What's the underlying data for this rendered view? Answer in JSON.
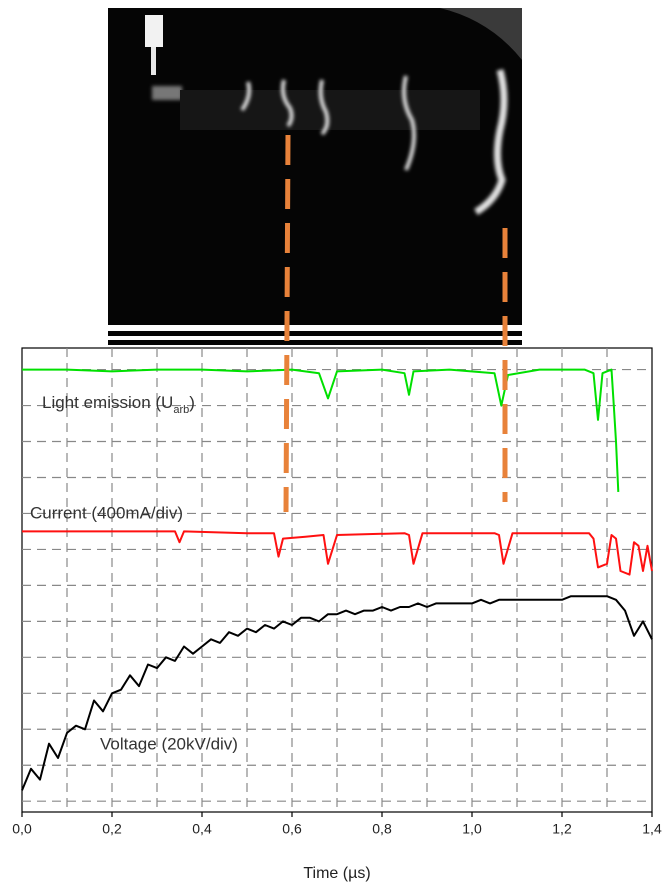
{
  "chart_data": {
    "type": "line",
    "x_label": "Time (µs)",
    "xlim": [
      0,
      1.4
    ],
    "xticks": [
      {
        "value": 0,
        "label": "0,0"
      },
      {
        "value": 0.2,
        "label": "0,2"
      },
      {
        "value": 0.4,
        "label": "0,4"
      },
      {
        "value": 0.6,
        "label": "0,6"
      },
      {
        "value": 0.8,
        "label": "0,8"
      },
      {
        "value": 1.0,
        "label": "1,0"
      },
      {
        "value": 1.2,
        "label": "1,2"
      },
      {
        "value": 1.4,
        "label": "1,4"
      }
    ],
    "x_grid": [
      0.1,
      0.2,
      0.3,
      0.4,
      0.5,
      0.6,
      0.7,
      0.8,
      0.9,
      1.0,
      1.1,
      1.2,
      1.3
    ],
    "ylim": [
      -0.3,
      12.6
    ],
    "yticks": [
      0,
      1,
      2,
      3,
      4,
      5,
      6,
      7,
      8,
      9,
      10,
      11,
      12
    ],
    "grid": true,
    "annotations": [
      {
        "text": "Light emission (U",
        "sub": "arb",
        "tail": ")"
      },
      {
        "text": "Current (400mA/div)"
      },
      {
        "text": "Voltage (20kV/div)"
      }
    ],
    "series": [
      {
        "color": "#00e000",
        "x": [
          0,
          0.1,
          0.2,
          0.3,
          0.4,
          0.5,
          0.6,
          0.66,
          0.68,
          0.7,
          0.8,
          0.85,
          0.86,
          0.87,
          0.95,
          1.05,
          1.065,
          1.08,
          1.15,
          1.25,
          1.27,
          1.28,
          1.29,
          1.31,
          1.315,
          1.32,
          1.325
        ],
        "values": [
          12.0,
          12.0,
          11.95,
          12.0,
          12.0,
          11.95,
          12.0,
          11.9,
          11.2,
          11.95,
          12.0,
          11.9,
          11.3,
          11.95,
          12.0,
          11.9,
          11.0,
          11.85,
          12.0,
          12.0,
          11.9,
          10.6,
          11.9,
          12.0,
          11.0,
          10.0,
          8.6
        ]
      },
      {
        "color": "#ff1010",
        "x": [
          0,
          0.2,
          0.34,
          0.35,
          0.36,
          0.5,
          0.56,
          0.57,
          0.58,
          0.63,
          0.67,
          0.68,
          0.7,
          0.85,
          0.86,
          0.87,
          0.89,
          1.05,
          1.06,
          1.07,
          1.09,
          1.26,
          1.27,
          1.28,
          1.3,
          1.31,
          1.32,
          1.33,
          1.35,
          1.36,
          1.37,
          1.38,
          1.39,
          1.4
        ],
        "values": [
          7.5,
          7.5,
          7.5,
          7.2,
          7.5,
          7.45,
          7.45,
          6.8,
          7.3,
          7.35,
          7.4,
          6.6,
          7.4,
          7.45,
          7.4,
          6.6,
          7.45,
          7.45,
          7.4,
          6.6,
          7.45,
          7.45,
          7.3,
          6.5,
          6.6,
          7.4,
          7.3,
          6.4,
          6.3,
          7.2,
          7.1,
          6.4,
          7.1,
          6.4
        ]
      },
      {
        "color": "#000000",
        "x": [
          0,
          0.02,
          0.04,
          0.06,
          0.08,
          0.1,
          0.12,
          0.14,
          0.16,
          0.18,
          0.2,
          0.22,
          0.24,
          0.26,
          0.28,
          0.3,
          0.32,
          0.34,
          0.36,
          0.38,
          0.4,
          0.42,
          0.44,
          0.46,
          0.48,
          0.5,
          0.52,
          0.54,
          0.56,
          0.58,
          0.6,
          0.62,
          0.64,
          0.66,
          0.68,
          0.7,
          0.72,
          0.74,
          0.76,
          0.78,
          0.8,
          0.82,
          0.84,
          0.86,
          0.88,
          0.9,
          0.92,
          0.94,
          0.96,
          0.98,
          1.0,
          1.02,
          1.04,
          1.06,
          1.08,
          1.1,
          1.12,
          1.14,
          1.16,
          1.18,
          1.2,
          1.22,
          1.24,
          1.26,
          1.28,
          1.3,
          1.32,
          1.34,
          1.36,
          1.38,
          1.4
        ],
        "values": [
          0.3,
          0.9,
          0.6,
          1.6,
          1.2,
          1.9,
          2.1,
          2.0,
          2.8,
          2.5,
          3.0,
          3.1,
          3.5,
          3.2,
          3.8,
          3.7,
          4.0,
          3.9,
          4.3,
          4.1,
          4.3,
          4.5,
          4.4,
          4.7,
          4.6,
          4.8,
          4.7,
          4.9,
          4.8,
          5.0,
          4.9,
          5.1,
          5.1,
          5.0,
          5.2,
          5.2,
          5.3,
          5.2,
          5.3,
          5.3,
          5.4,
          5.3,
          5.4,
          5.4,
          5.5,
          5.4,
          5.5,
          5.5,
          5.5,
          5.5,
          5.5,
          5.6,
          5.5,
          5.6,
          5.6,
          5.6,
          5.6,
          5.6,
          5.6,
          5.6,
          5.6,
          5.7,
          5.7,
          5.7,
          5.7,
          5.7,
          5.6,
          5.3,
          4.6,
          5.0,
          4.5
        ]
      }
    ]
  }
}
